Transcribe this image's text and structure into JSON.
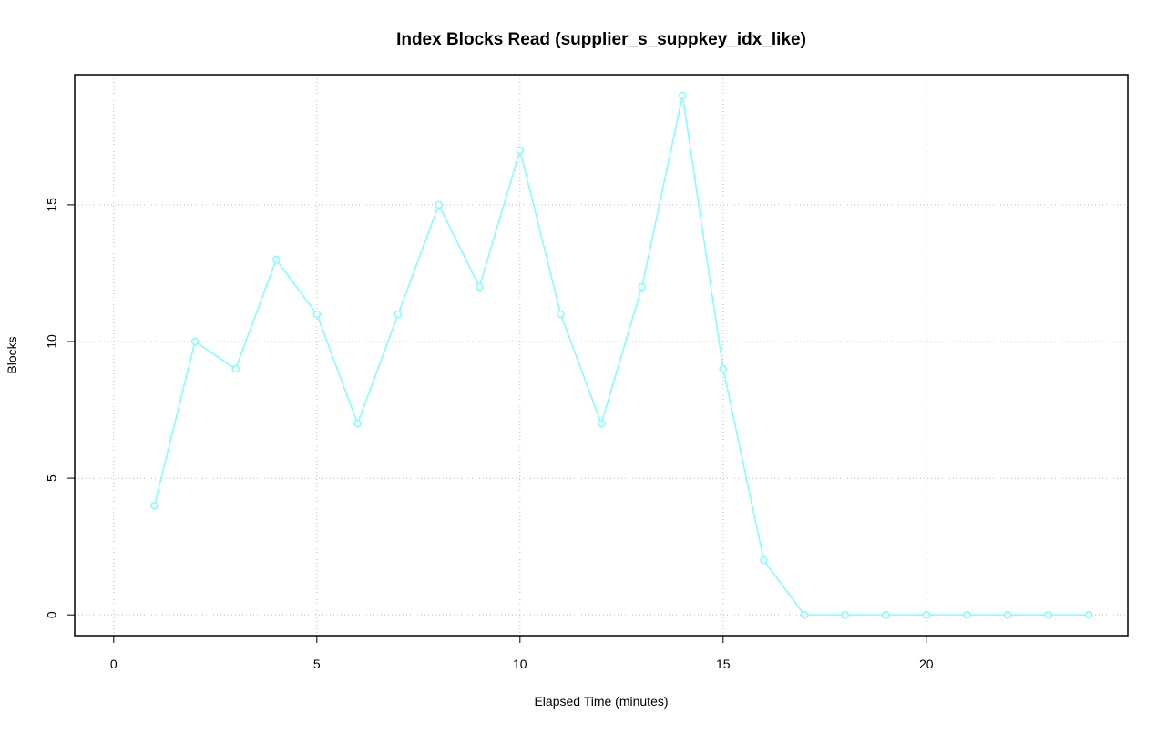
{
  "chart_data": {
    "type": "line",
    "title": "Index Blocks Read (supplier_s_suppkey_idx_like)",
    "x_label": "Elapsed Time (minutes)",
    "y_label": "Blocks",
    "x": [
      1,
      2,
      3,
      4,
      5,
      6,
      7,
      8,
      9,
      10,
      11,
      12,
      13,
      14,
      15,
      16,
      17,
      18,
      19,
      20,
      21,
      22,
      23,
      24
    ],
    "series": [
      {
        "color": "#7fffff",
        "values": [
          4,
          10,
          9,
          13,
          11,
          7,
          11,
          15,
          12,
          17,
          11,
          7,
          12,
          19,
          9,
          2,
          0,
          0,
          0,
          0,
          0,
          0,
          0,
          0
        ]
      }
    ],
    "xlim": [
      -0.96,
      24.96
    ],
    "ylim": [
      -0.76,
      19.76
    ],
    "xticks": [
      0,
      5,
      10,
      15,
      20
    ],
    "yticks": [
      0,
      5,
      10,
      15
    ],
    "grid": true
  }
}
